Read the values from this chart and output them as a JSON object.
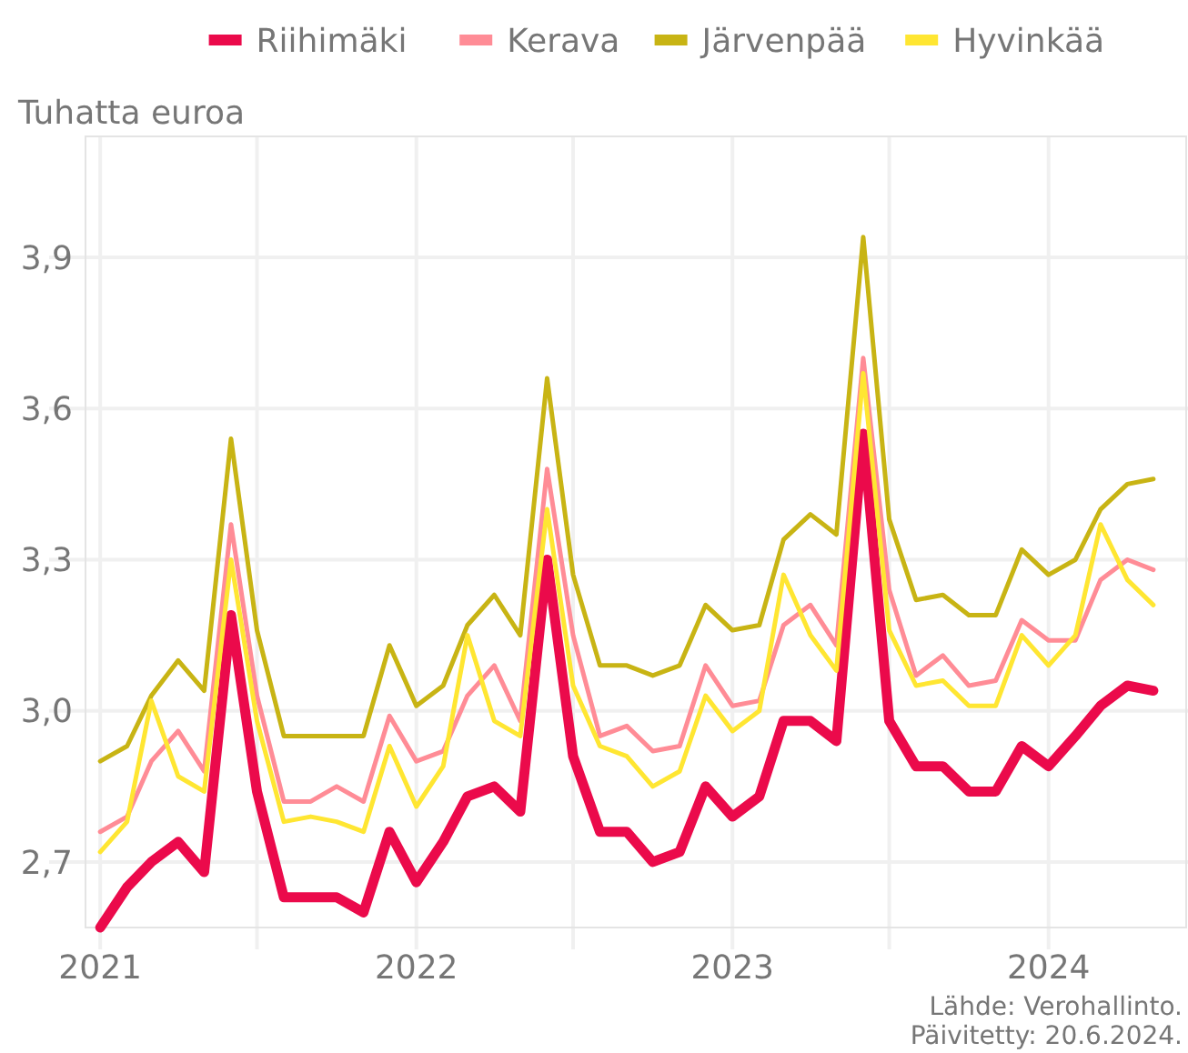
{
  "chart_data": {
    "type": "line",
    "ylabel": "Tuhatta euroa",
    "annotations": [
      "Lähde: Verohallinto.",
      "Päivitetty: 20.6.2024."
    ],
    "x": [
      "2021-01",
      "2021-02",
      "2021-03",
      "2021-04",
      "2021-05",
      "2021-06",
      "2021-07",
      "2021-08",
      "2021-09",
      "2021-10",
      "2021-11",
      "2021-12",
      "2022-01",
      "2022-02",
      "2022-03",
      "2022-04",
      "2022-05",
      "2022-06",
      "2022-07",
      "2022-08",
      "2022-09",
      "2022-10",
      "2022-11",
      "2022-12",
      "2023-01",
      "2023-02",
      "2023-03",
      "2023-04",
      "2023-05",
      "2023-06",
      "2023-07",
      "2023-08",
      "2023-09",
      "2023-10",
      "2023-11",
      "2023-12",
      "2024-01",
      "2024-02",
      "2024-03",
      "2024-04",
      "2024-05"
    ],
    "series": [
      {
        "name": "Riihimäki",
        "color": "#eb0a4b",
        "values": [
          2.57,
          2.65,
          2.7,
          2.74,
          2.68,
          3.19,
          2.84,
          2.63,
          2.63,
          2.63,
          2.6,
          2.76,
          2.66,
          2.74,
          2.83,
          2.85,
          2.8,
          3.3,
          2.91,
          2.76,
          2.76,
          2.7,
          2.72,
          2.85,
          2.79,
          2.83,
          2.98,
          2.98,
          2.94,
          3.55,
          2.98,
          2.89,
          2.89,
          2.84,
          2.84,
          2.93,
          2.89,
          2.95,
          3.01,
          3.05,
          3.04
        ]
      },
      {
        "name": "Kerava",
        "color": "#ff8c96",
        "values": [
          2.76,
          2.79,
          2.9,
          2.96,
          2.88,
          3.37,
          3.03,
          2.82,
          2.82,
          2.85,
          2.82,
          2.99,
          2.9,
          2.92,
          3.03,
          3.09,
          2.98,
          3.48,
          3.15,
          2.95,
          2.97,
          2.92,
          2.93,
          3.09,
          3.01,
          3.02,
          3.17,
          3.21,
          3.13,
          3.7,
          3.24,
          3.07,
          3.11,
          3.05,
          3.06,
          3.18,
          3.14,
          3.14,
          3.26,
          3.3,
          3.28
        ]
      },
      {
        "name": "Järvenpää",
        "color": "#c8b414",
        "values": [
          2.9,
          2.93,
          3.03,
          3.1,
          3.04,
          3.54,
          3.16,
          2.95,
          2.95,
          2.95,
          2.95,
          3.13,
          3.01,
          3.05,
          3.17,
          3.23,
          3.15,
          3.66,
          3.27,
          3.09,
          3.09,
          3.07,
          3.09,
          3.21,
          3.16,
          3.17,
          3.34,
          3.39,
          3.35,
          3.94,
          3.38,
          3.22,
          3.23,
          3.19,
          3.19,
          3.32,
          3.27,
          3.3,
          3.4,
          3.45,
          3.46
        ]
      },
      {
        "name": "Hyvinkää",
        "color": "#ffe632",
        "values": [
          2.72,
          2.78,
          3.02,
          2.87,
          2.84,
          3.3,
          2.98,
          2.78,
          2.79,
          2.78,
          2.76,
          2.93,
          2.81,
          2.89,
          3.15,
          2.98,
          2.95,
          3.4,
          3.05,
          2.93,
          2.91,
          2.85,
          2.88,
          3.03,
          2.96,
          3.0,
          3.27,
          3.15,
          3.08,
          3.67,
          3.16,
          3.05,
          3.06,
          3.01,
          3.01,
          3.15,
          3.09,
          3.15,
          3.37,
          3.26,
          3.21
        ]
      }
    ],
    "xlim": [
      "2020-12-15",
      "2024-06-10"
    ],
    "ylim": [
      2.57,
      4.14
    ],
    "xticks": [
      "2021",
      {
        "value": "2021-07",
        "label": null
      },
      "2022",
      {
        "value": "2022-07",
        "label": null
      },
      "2023",
      {
        "value": "2023-07",
        "label": null
      },
      "2024"
    ],
    "yticks": [
      {
        "value": 2.7,
        "label": "2,7"
      },
      {
        "value": 3.0,
        "label": "3,0"
      },
      {
        "value": 3.3,
        "label": "3,3"
      },
      {
        "value": 3.6,
        "label": "3,6"
      },
      {
        "value": 3.9,
        "label": "3,9"
      }
    ],
    "grid": true,
    "legend": "top",
    "marker": "none",
    "line_style": "solid"
  }
}
